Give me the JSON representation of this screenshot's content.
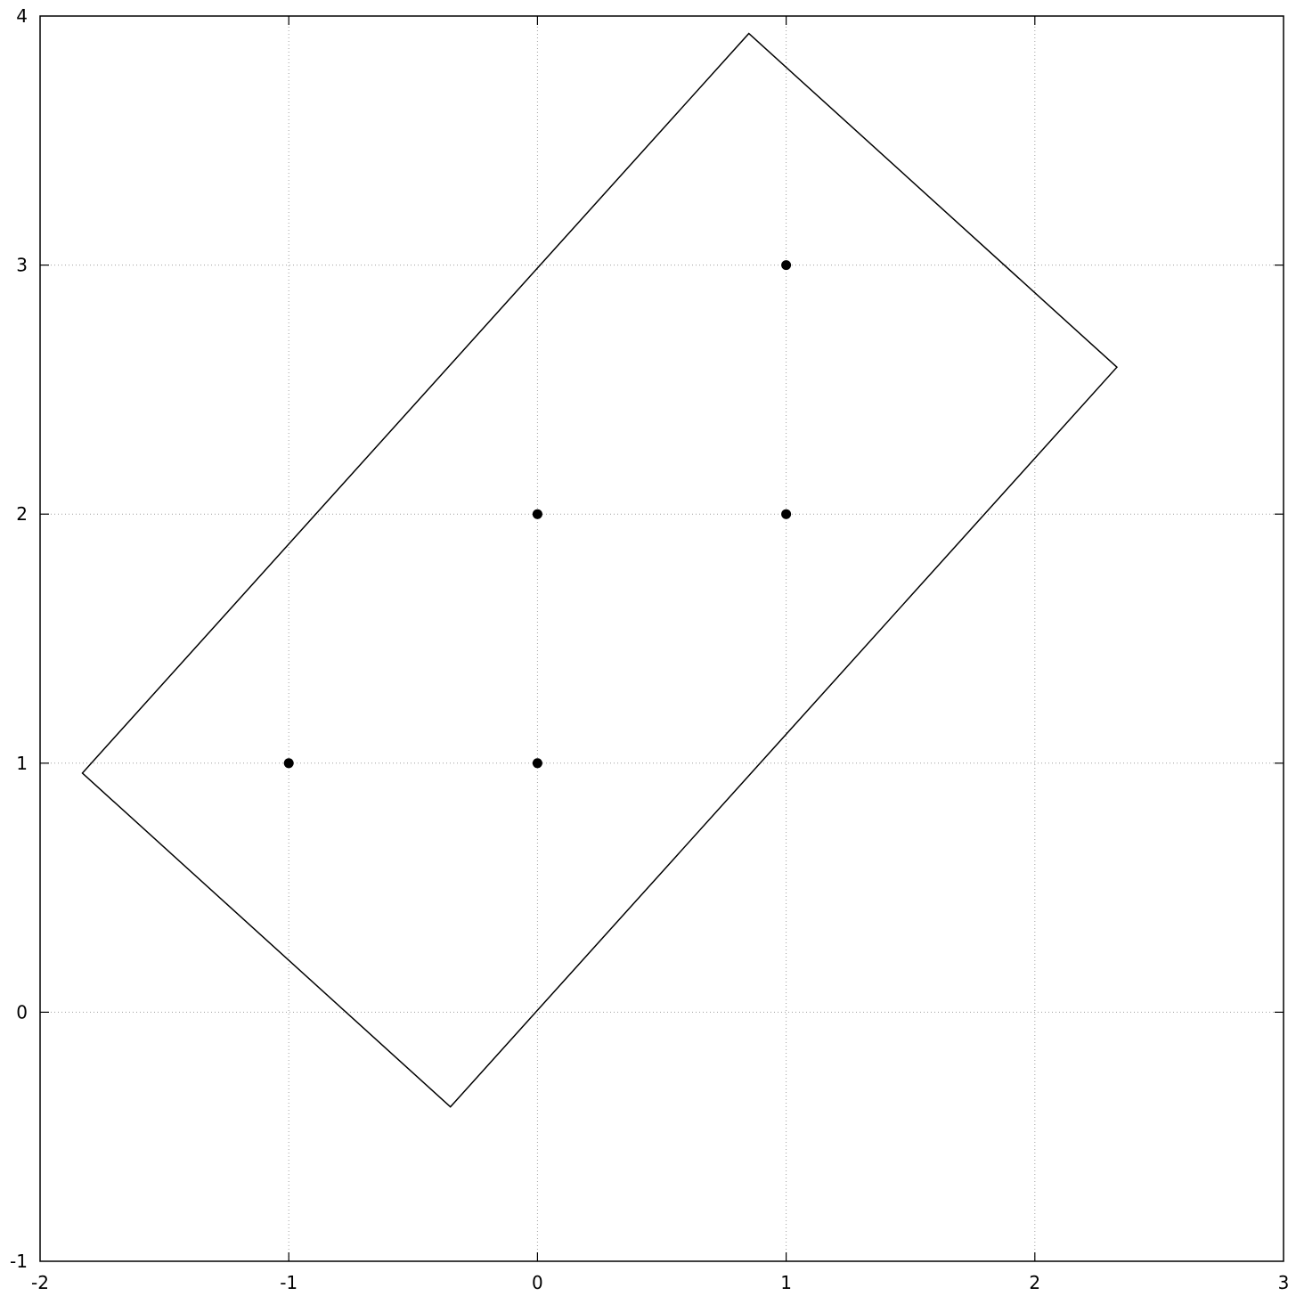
{
  "chart_data": {
    "type": "scatter",
    "title": "",
    "xlabel": "",
    "ylabel": "",
    "xlim": [
      -2,
      3
    ],
    "ylim": [
      -1,
      4
    ],
    "grid": true,
    "xticks": [
      -2,
      -1,
      0,
      1,
      2,
      3
    ],
    "yticks": [
      -1,
      0,
      1,
      2,
      3,
      4
    ],
    "x_tick_labels": [
      "-2",
      "-1",
      "0",
      "1",
      "2",
      "3"
    ],
    "y_tick_labels": [
      "-1",
      "0",
      "1",
      "2",
      "3",
      "4"
    ],
    "series": [
      {
        "type": "scatter",
        "color": "#000000",
        "points": [
          [
            -1,
            1
          ],
          [
            0,
            1
          ],
          [
            0,
            2
          ],
          [
            1,
            2
          ],
          [
            1,
            3
          ]
        ]
      },
      {
        "type": "polygon",
        "color": "#000000",
        "points": [
          [
            -1.83,
            0.96
          ],
          [
            0.85,
            3.93
          ],
          [
            2.33,
            2.59
          ],
          [
            -0.35,
            -0.38
          ]
        ]
      }
    ]
  }
}
